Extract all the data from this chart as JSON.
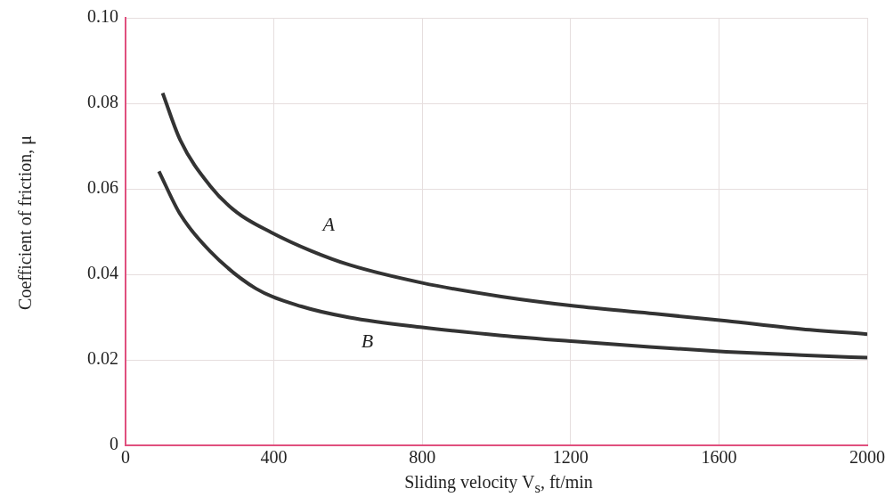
{
  "chart_data": {
    "type": "line",
    "xlabel": "Sliding velocity V$_{s}$, ft/min",
    "ylabel": "Coefficient of friction, μ",
    "xlim": [
      0,
      2000
    ],
    "xticks": [
      0,
      400,
      800,
      1200,
      1600,
      2000
    ],
    "ylim": [
      0,
      0.1
    ],
    "yticks": [
      0,
      0.02,
      0.04,
      0.06,
      0.08,
      {
        "value": 0.1,
        "label": "0.10"
      }
    ],
    "grid": true,
    "legend": false,
    "marker": "none",
    "line_style": "solid",
    "series": [
      {
        "name": "A",
        "color": "#333333",
        "x": [
          100,
          147,
          228,
          300,
          393,
          500,
          604,
          800,
          1013,
          1210,
          1413,
          1620,
          1823,
          2000
        ],
        "values": [
          0.0824,
          0.0715,
          0.0607,
          0.0545,
          0.0498,
          0.0455,
          0.0422,
          0.038,
          0.0348,
          0.0326,
          0.0309,
          0.0291,
          0.0272,
          0.026
        ]
      },
      {
        "name": "B",
        "color": "#333333",
        "x": [
          90,
          147,
          228,
          351,
          474,
          604,
          800,
          1013,
          1210,
          1413,
          1620,
          1823,
          2000
        ],
        "values": [
          0.0641,
          0.0541,
          0.0454,
          0.0367,
          0.0325,
          0.0299,
          0.0276,
          0.0257,
          0.0243,
          0.023,
          0.0219,
          0.0211,
          0.0205
        ]
      }
    ]
  }
}
